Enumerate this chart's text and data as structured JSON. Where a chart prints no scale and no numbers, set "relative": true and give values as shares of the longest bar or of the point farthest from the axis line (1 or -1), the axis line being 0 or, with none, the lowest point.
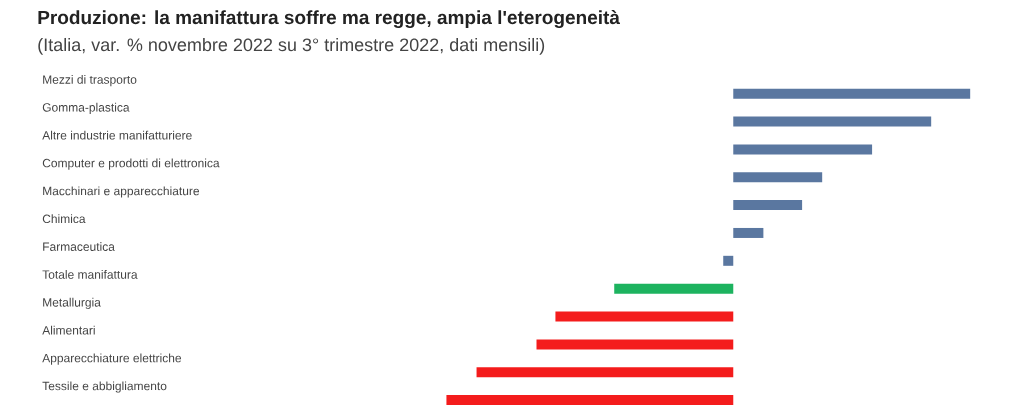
{
  "chart_data": {
    "type": "bar",
    "orientation": "horizontal",
    "relative": true,
    "title": "Produzione: la manifattura soffre ma regge, ampia l'eterogeneità",
    "subtitle": "(Italia, var. % novembre 2022 su 3° trimestre 2022, dati mensili)",
    "categories": [
      "Mezzi di trasporto",
      "Gomma-plastica",
      "Altre industrie manifatturiere",
      "Computer e prodotti di elettronica",
      "Macchinari e apparecchiature",
      "Chimica",
      "Farmaceutica",
      "Totale manifattura",
      "Metallurgia",
      "Alimentari",
      "Apparecchiature elettriche",
      "Tessile e abbigliamento"
    ],
    "values": [
      0.826,
      0.69,
      0.484,
      0.31,
      0.24,
      0.105,
      -0.035,
      -0.415,
      -0.62,
      -0.686,
      -0.895,
      -1
    ],
    "colors": [
      "#5a77a0",
      "#5a77a0",
      "#5a77a0",
      "#5a77a0",
      "#5a77a0",
      "#5a77a0",
      "#5a77a0",
      "#1db35f",
      "#f41c1c",
      "#f41c1c",
      "#f41c1c",
      "#f41c1c"
    ]
  }
}
